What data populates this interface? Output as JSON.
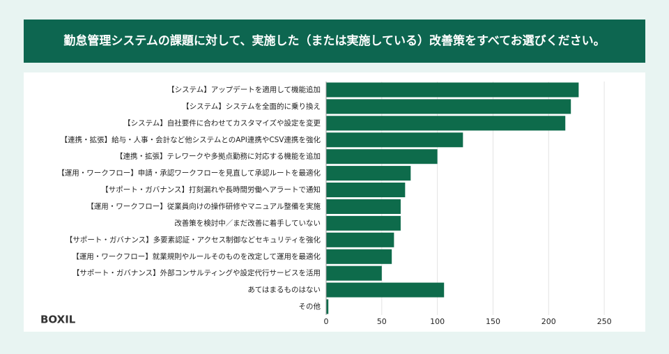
{
  "chart_data": {
    "type": "barh",
    "title": "勤怠管理システムの課題に対して、実施した（または実施している）改善策をすべてお選びください。",
    "categories": [
      "【システム】アップデートを適用して機能追加",
      "【システム】システムを全面的に乗り換え",
      "【システム】自社要件に合わせてカスタマイズや設定を変更",
      "【連携・拡張】給与・人事・会計など他システムとのAPI連携やCSV連携を強化",
      "【連携・拡張】テレワークや多拠点勤務に対応する機能を追加",
      "【運用・ワークフロー】申請・承認ワークフローを見直して承認ルートを最適化",
      "【サポート・ガバナンス】打刻漏れや長時間労働へアラートで通知",
      "【運用・ワークフロー】従業員向けの操作研修やマニュアル整備を実施",
      "改善策を検討中／まだ改善に着手していない",
      "【サポート・ガバナンス】多要素認証・アクセス制御などセキュリティを強化",
      "【運用・ワークフロー】就業規則やルールそのものを改定して運用を最適化",
      "【サポート・ガバナンス】外部コンサルティングや設定代行サービスを活用",
      "あてはまるものはない",
      "その他"
    ],
    "values": [
      227,
      220,
      215,
      123,
      100,
      76,
      71,
      67,
      67,
      61,
      59,
      50,
      106,
      2
    ],
    "color": "#0e6b4b",
    "xlim": [
      0,
      275
    ],
    "xticks": [
      0,
      50,
      100,
      150,
      200,
      250
    ],
    "grid": true,
    "logo": "BOXIL"
  }
}
